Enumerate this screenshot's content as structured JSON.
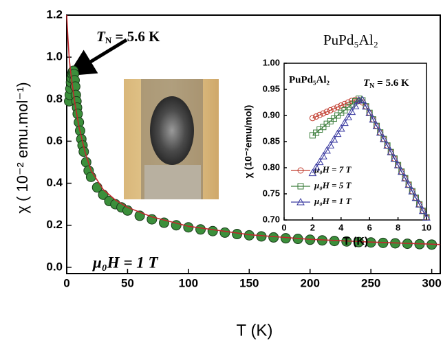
{
  "chart_data": [
    {
      "type": "scatter",
      "x_label": "T (K)",
      "y_label": "χ ( 10⁻² emu.mol⁻¹)",
      "tn_label": {
        "symbol": "T",
        "sub": "N",
        "rest": " = 5.6 K"
      },
      "field_label": "μ₀H = 1 T",
      "compound_label": "PuPd₅Al₂",
      "xlim": [
        0,
        307
      ],
      "xticks": [
        0,
        50,
        100,
        150,
        200,
        250,
        300
      ],
      "ylim": [
        -0.03,
        1.2
      ],
      "yticks": [
        {
          "value": 0,
          "label": "0.0"
        },
        {
          "value": 0.2,
          "label": "0.2"
        },
        {
          "value": 0.4,
          "label": "0.4"
        },
        {
          "value": 0.6,
          "label": "0.6"
        },
        {
          "value": 0.8,
          "label": "0.8"
        },
        {
          "value": 1.0,
          "label": "1.0"
        },
        {
          "value": 1.2,
          "label": "1.2"
        }
      ],
      "series": [
        {
          "color": "#3b8f3b",
          "marker": "circle",
          "line": false,
          "x": [
            2,
            2.5,
            3,
            3.5,
            4,
            4.5,
            5,
            5.5,
            6,
            6.5,
            7,
            7.5,
            8,
            8.5,
            9,
            10,
            11,
            12,
            13,
            14,
            16,
            18,
            20,
            25,
            30,
            35,
            40,
            45,
            50,
            60,
            70,
            80,
            90,
            100,
            110,
            120,
            130,
            140,
            150,
            160,
            170,
            180,
            190,
            200,
            210,
            220,
            230,
            240,
            250,
            260,
            270,
            280,
            290,
            300
          ],
          "values": [
            0.79,
            0.82,
            0.85,
            0.88,
            0.9,
            0.92,
            0.93,
            0.935,
            0.92,
            0.89,
            0.86,
            0.82,
            0.79,
            0.76,
            0.73,
            0.69,
            0.65,
            0.61,
            0.58,
            0.55,
            0.5,
            0.46,
            0.43,
            0.38,
            0.345,
            0.315,
            0.3,
            0.285,
            0.27,
            0.245,
            0.228,
            0.212,
            0.2,
            0.19,
            0.18,
            0.172,
            0.165,
            0.158,
            0.152,
            0.147,
            0.142,
            0.138,
            0.135,
            0.131,
            0.128,
            0.125,
            0.123,
            0.12,
            0.118,
            0.116,
            0.114,
            0.112,
            0.11,
            0.108
          ]
        },
        {
          "color": "#c0272d",
          "marker": "none",
          "line": true,
          "x": [
            0,
            1,
            2,
            3,
            5,
            7,
            10,
            15,
            20,
            30,
            40,
            50,
            70,
            100,
            150,
            200,
            250,
            300,
            307
          ],
          "values": [
            1.2,
            1.09,
            1.0,
            0.94,
            0.85,
            0.77,
            0.67,
            0.55,
            0.46,
            0.37,
            0.32,
            0.285,
            0.24,
            0.195,
            0.155,
            0.133,
            0.12,
            0.11,
            0.108
          ]
        }
      ]
    },
    {
      "type": "scatter",
      "x_label": "T (K)",
      "y_label": "χ (10⁻²emu/mol)",
      "tn_label": {
        "symbol": "T",
        "sub": "N",
        "rest": " = 5.6 K"
      },
      "compound_label": "PuPd₅Al₂",
      "xlim": [
        0,
        10
      ],
      "xticks": [
        0,
        2,
        4,
        6,
        8,
        10
      ],
      "ylim": [
        0.7,
        1.0
      ],
      "yticks": [
        {
          "value": 0.7,
          "label": "0.70"
        },
        {
          "value": 0.75,
          "label": "0.75"
        },
        {
          "value": 0.8,
          "label": "0.80"
        },
        {
          "value": 0.85,
          "label": "0.85"
        },
        {
          "value": 0.9,
          "label": "0.90"
        },
        {
          "value": 0.95,
          "label": "0.95"
        },
        {
          "value": 1.0,
          "label": "1.00"
        }
      ],
      "x": [
        2,
        2.25,
        2.5,
        2.75,
        3,
        3.25,
        3.5,
        3.75,
        4,
        4.25,
        4.5,
        4.75,
        5,
        5.25,
        5.5,
        5.75,
        6,
        6.25,
        6.5,
        6.75,
        7,
        7.25,
        7.5,
        7.75,
        8,
        8.25,
        8.5,
        8.75,
        9,
        9.25,
        9.5,
        9.75,
        10
      ],
      "series": [
        {
          "name": "μ₀H = 7 T",
          "color": "#c0392b",
          "marker": "circle",
          "line": true,
          "values": [
            0.895,
            0.898,
            0.901,
            0.904,
            0.907,
            0.91,
            0.913,
            0.916,
            0.919,
            0.922,
            0.925,
            0.928,
            0.93,
            0.928,
            0.925,
            0.9175,
            0.905,
            0.8925,
            0.88,
            0.8675,
            0.855,
            0.8425,
            0.83,
            0.8175,
            0.805,
            0.7925,
            0.78,
            0.7675,
            0.755,
            0.7425,
            0.73,
            0.7175,
            0.705
          ]
        },
        {
          "name": "μ₀H = 5 T",
          "color": "#3b7d3b",
          "marker": "square",
          "line": true,
          "values": [
            0.862,
            0.867,
            0.873,
            0.878,
            0.884,
            0.889,
            0.894,
            0.9,
            0.905,
            0.91,
            0.916,
            0.921,
            0.927,
            0.932,
            0.929,
            0.9175,
            0.905,
            0.8925,
            0.88,
            0.8675,
            0.855,
            0.8425,
            0.83,
            0.8175,
            0.805,
            0.7925,
            0.78,
            0.7675,
            0.755,
            0.7425,
            0.73,
            0.7175,
            0.705
          ]
        },
        {
          "name": "μ₀H = 1 T",
          "color": "#3a3aa0",
          "marker": "triangle",
          "line": true,
          "values": [
            0.79,
            0.801,
            0.811,
            0.822,
            0.833,
            0.843,
            0.854,
            0.865,
            0.875,
            0.886,
            0.897,
            0.907,
            0.918,
            0.929,
            0.93,
            0.9175,
            0.905,
            0.8925,
            0.88,
            0.8675,
            0.855,
            0.8425,
            0.83,
            0.8175,
            0.805,
            0.7925,
            0.78,
            0.7675,
            0.755,
            0.7425,
            0.73,
            0.7175,
            0.705
          ]
        }
      ]
    }
  ]
}
